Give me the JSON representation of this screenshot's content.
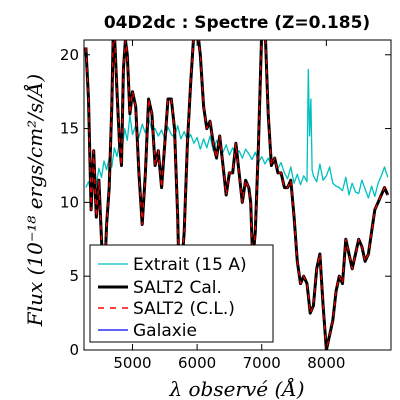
{
  "chart_data": {
    "type": "line",
    "title": "04D2dc : Spectre (Z=0.185)",
    "xlabel": "λ observé (Å)",
    "ylabel": "Flux (10⁻¹⁸ ergs/cm²/s/Å)",
    "xlim": [
      4250,
      9000
    ],
    "ylim": [
      0,
      21
    ],
    "xticks": [
      5000,
      6000,
      7000,
      8000
    ],
    "yticks": [
      0,
      5,
      10,
      15,
      20
    ],
    "legend_position": "lower-left",
    "series": [
      {
        "name": "Extrait (15 A)",
        "color": "#00bfbf",
        "style": "solid",
        "x": [
          4280,
          4320,
          4360,
          4400,
          4440,
          4480,
          4520,
          4560,
          4600,
          4640,
          4680,
          4720,
          4760,
          4800,
          4840,
          4880,
          4920,
          4960,
          5000,
          5050,
          5100,
          5150,
          5200,
          5250,
          5300,
          5350,
          5400,
          5450,
          5500,
          5550,
          5600,
          5650,
          5700,
          5750,
          5800,
          5850,
          5900,
          5950,
          6000,
          6050,
          6100,
          6150,
          6200,
          6250,
          6300,
          6350,
          6400,
          6450,
          6500,
          6550,
          6600,
          6650,
          6700,
          6750,
          6800,
          6850,
          6900,
          6950,
          7000,
          7050,
          7100,
          7150,
          7200,
          7250,
          7300,
          7350,
          7400,
          7450,
          7500,
          7550,
          7600,
          7650,
          7700,
          7720,
          7740,
          7760,
          7780,
          7800,
          7850,
          7900,
          7950,
          8000,
          8050,
          8100,
          8150,
          8200,
          8250,
          8300,
          8350,
          8400,
          8450,
          8500,
          8550,
          8600,
          8650,
          8700,
          8750,
          8800,
          8850,
          8900,
          8950
        ],
        "y": [
          11.0,
          11.4,
          10.6,
          11.8,
          11.2,
          12.3,
          11.7,
          12.8,
          12.2,
          13.0,
          12.4,
          13.7,
          13.1,
          14.1,
          13.5,
          15.0,
          14.2,
          15.9,
          14.6,
          15.2,
          14.4,
          15.3,
          14.7,
          15.7,
          14.9,
          15.0,
          14.5,
          14.9,
          14.3,
          15.1,
          14.6,
          14.4,
          15.2,
          14.3,
          14.8,
          14.2,
          14.6,
          14.0,
          14.4,
          13.6,
          14.3,
          13.7,
          14.5,
          13.5,
          14.2,
          13.7,
          13.4,
          13.9,
          13.2,
          13.7,
          13.2,
          13.5,
          13.0,
          13.6,
          13.3,
          12.9,
          13.4,
          12.7,
          13.1,
          12.6,
          13.0,
          12.5,
          12.8,
          12.3,
          12.7,
          12.0,
          11.6,
          12.4,
          11.3,
          11.9,
          11.2,
          11.8,
          11.4,
          19.0,
          14.5,
          17.0,
          12.2,
          11.8,
          11.4,
          12.6,
          11.5,
          11.8,
          12.4,
          11.3,
          11.1,
          11.0,
          10.8,
          11.7,
          10.5,
          11.3,
          10.7,
          10.6,
          11.5,
          10.9,
          10.3,
          11.1,
          10.4,
          11.3,
          11.8,
          12.4,
          11.7
        ]
      },
      {
        "name": "SALT2 Cal.",
        "color": "#000000",
        "style": "solid",
        "x": [
          4280,
          4320,
          4360,
          4400,
          4440,
          4480,
          4520,
          4560,
          4600,
          4640,
          4680,
          4700,
          4720,
          4760,
          4800,
          4830,
          4860,
          4890,
          4920,
          4960,
          5000,
          5050,
          5100,
          5150,
          5200,
          5250,
          5300,
          5350,
          5400,
          5450,
          5500,
          5550,
          5600,
          5650,
          5700,
          5730,
          5760,
          5800,
          5850,
          5900,
          5950,
          6000,
          6050,
          6100,
          6150,
          6200,
          6250,
          6300,
          6350,
          6400,
          6450,
          6500,
          6550,
          6600,
          6650,
          6700,
          6750,
          6800,
          6830,
          6860,
          6900,
          6950,
          7000,
          7050,
          7100,
          7150,
          7200,
          7250,
          7300,
          7350,
          7400,
          7450,
          7500,
          7550,
          7600,
          7650,
          7700,
          7750,
          7800,
          7850,
          7900,
          7950,
          8000,
          8050,
          8100,
          8150,
          8200,
          8250,
          8300,
          8350,
          8400,
          8450,
          8500,
          8550,
          8600,
          8650,
          8700,
          8750,
          8800,
          8850,
          8900,
          8950
        ],
        "y": [
          20.5,
          17.0,
          9.5,
          13.5,
          9.0,
          11.5,
          7.5,
          4.0,
          8.5,
          11.0,
          16.5,
          21.0,
          21.5,
          17.5,
          14.0,
          12.5,
          19.0,
          21.0,
          20.0,
          16.0,
          17.5,
          16.5,
          12.0,
          8.5,
          12.0,
          17.0,
          16.0,
          12.5,
          13.5,
          11.0,
          14.0,
          17.0,
          17.0,
          15.0,
          9.0,
          3.0,
          5.5,
          8.0,
          14.0,
          18.0,
          21.5,
          22.0,
          20.0,
          16.5,
          15.0,
          15.5,
          14.0,
          13.0,
          14.5,
          12.5,
          10.5,
          12.0,
          12.0,
          14.0,
          12.0,
          10.0,
          11.5,
          11.0,
          10.0,
          6.0,
          8.0,
          14.0,
          21.5,
          22.0,
          16.0,
          12.5,
          13.0,
          12.0,
          12.0,
          11.0,
          11.0,
          11.5,
          9.0,
          6.0,
          4.5,
          5.0,
          4.5,
          2.5,
          3.0,
          5.5,
          6.5,
          3.0,
          0.0,
          1.0,
          2.0,
          4.0,
          5.0,
          4.5,
          7.5,
          6.5,
          5.5,
          6.5,
          7.5,
          7.0,
          6.0,
          6.5,
          8.0,
          9.5,
          10.0,
          10.5,
          11.0,
          10.5
        ]
      },
      {
        "name": "SALT2 (C.L.)",
        "color": "#ff0000",
        "style": "dashed"
      },
      {
        "name": "Galaxie",
        "color": "#0000ff",
        "style": "solid"
      }
    ]
  }
}
